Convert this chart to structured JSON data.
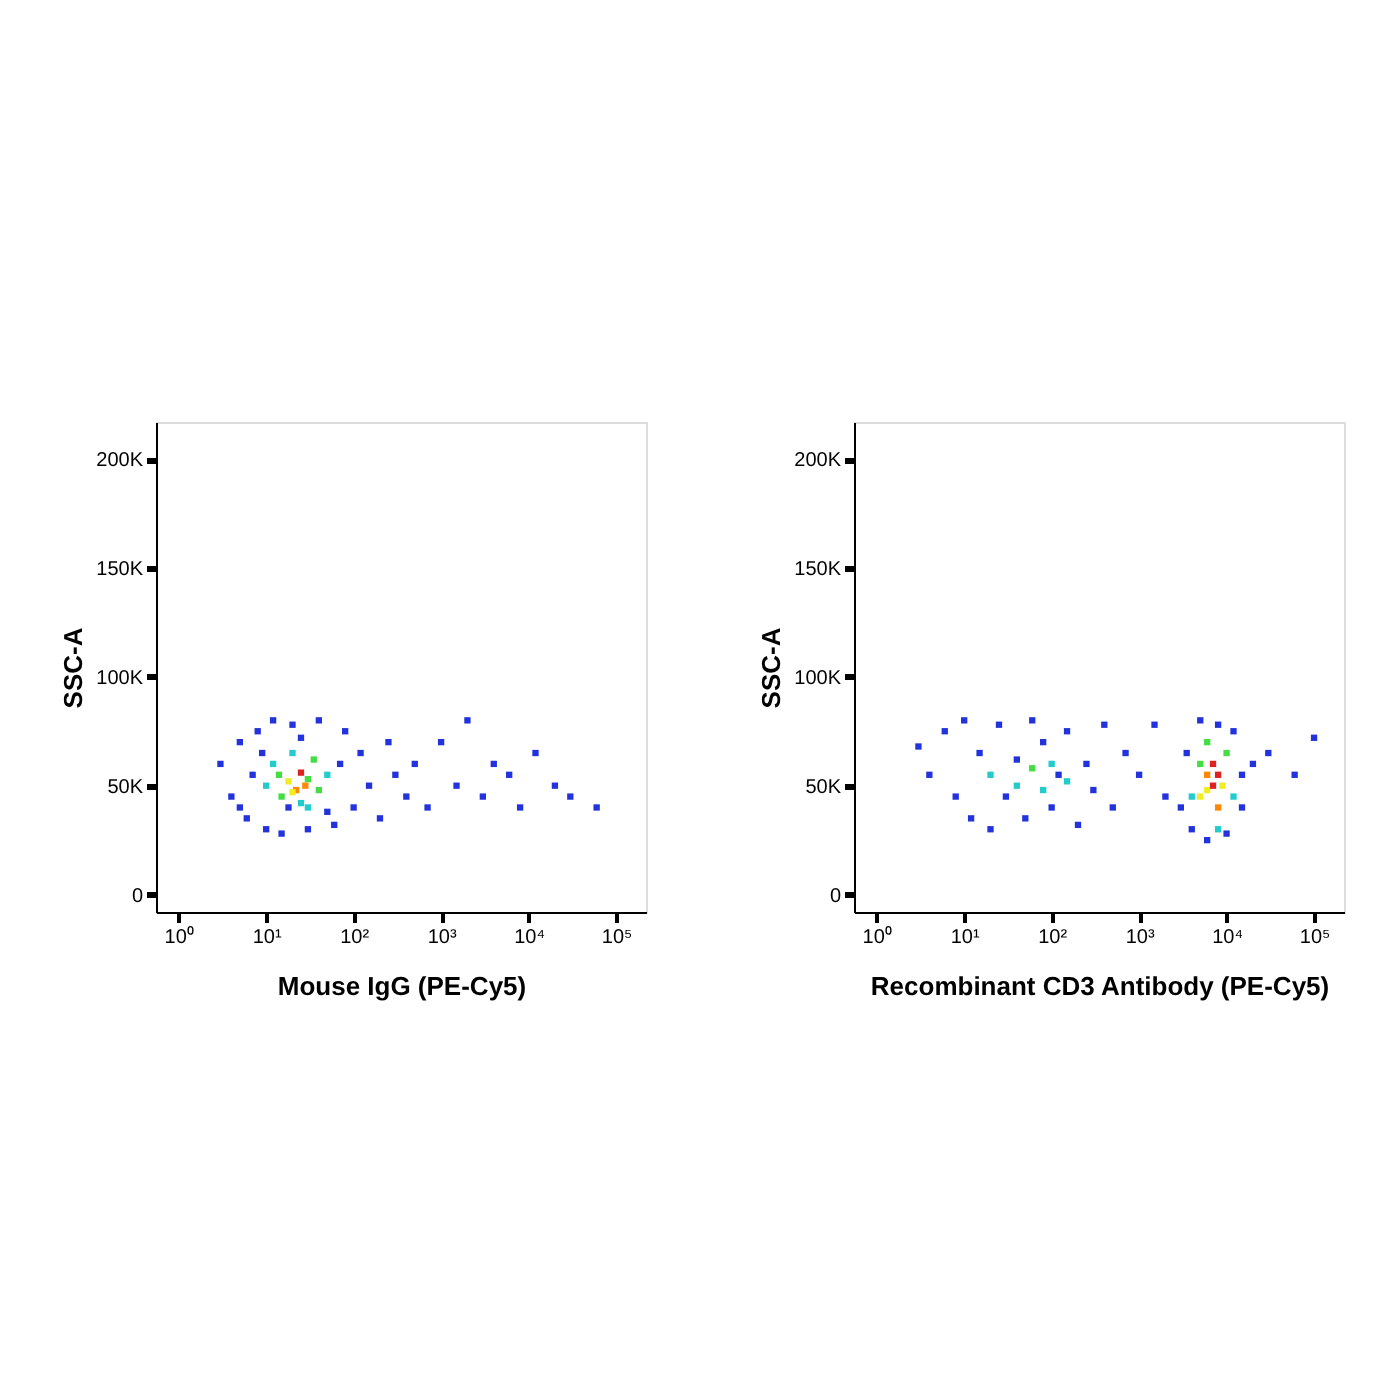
{
  "chart_data": [
    {
      "type": "scatter",
      "xlabel": "Mouse IgG (PE-Cy5)",
      "ylabel": "SSC-A",
      "log": "x",
      "grid": false,
      "marker": "square",
      "xlim": [
        0.55,
        220000
      ],
      "ylim": [
        -8000,
        217000
      ],
      "xticks": [
        {
          "value": 1,
          "label": "10⁰"
        },
        {
          "value": 10,
          "label": "10¹"
        },
        {
          "value": 100,
          "label": "10²"
        },
        {
          "value": 1000,
          "label": "10³"
        },
        {
          "value": 10000,
          "label": "10⁴"
        },
        {
          "value": 100000,
          "label": "10⁵"
        }
      ],
      "yticks": [
        0,
        {
          "value": 50000,
          "label": "50K"
        },
        {
          "value": 100000,
          "label": "100K"
        },
        {
          "value": 150000,
          "label": "150K"
        },
        {
          "value": 200000,
          "label": "200K"
        }
      ],
      "series": [
        {
          "x": [
            3,
            4,
            5,
            6,
            7,
            8,
            10,
            12,
            15,
            20,
            30,
            40,
            60,
            80,
            100,
            120,
            150,
            200,
            250,
            300,
            400,
            500,
            700,
            1000,
            1500,
            2000,
            3000,
            4000,
            6000,
            8000,
            12000,
            20000,
            30000,
            60000,
            5,
            9,
            25,
            50,
            70,
            18,
            10,
            12,
            15,
            20,
            25,
            35,
            40,
            50,
            14,
            30,
            18,
            22,
            25,
            28,
            20,
            30
          ],
          "values": [
            60000,
            45000,
            70000,
            35000,
            55000,
            75000,
            30000,
            80000,
            28000,
            78000,
            30000,
            80000,
            32000,
            75000,
            40000,
            65000,
            50000,
            35000,
            70000,
            55000,
            45000,
            60000,
            40000,
            70000,
            50000,
            80000,
            45000,
            60000,
            55000,
            40000,
            65000,
            50000,
            45000,
            40000,
            40000,
            65000,
            72000,
            38000,
            60000,
            40000,
            50000,
            60000,
            45000,
            65000,
            42000,
            62000,
            48000,
            55000,
            55000,
            40000,
            52000,
            48000,
            56000,
            50000,
            47000,
            53000
          ],
          "colors": [
            "#2233dd",
            "#2233dd",
            "#2233dd",
            "#2233dd",
            "#2233dd",
            "#2233dd",
            "#2233dd",
            "#2233dd",
            "#2233dd",
            "#2233dd",
            "#2233dd",
            "#2233dd",
            "#2233dd",
            "#2233dd",
            "#2233dd",
            "#2233dd",
            "#2233dd",
            "#2233dd",
            "#2233dd",
            "#2233dd",
            "#2233dd",
            "#2233dd",
            "#2233dd",
            "#2233dd",
            "#2233dd",
            "#2233dd",
            "#2233dd",
            "#2233dd",
            "#2233dd",
            "#2233dd",
            "#2233dd",
            "#2233dd",
            "#2233dd",
            "#2233dd",
            "#2233dd",
            "#2233dd",
            "#2233dd",
            "#2233dd",
            "#2233dd",
            "#2233dd",
            "#22cccc",
            "#22cccc",
            "#44dd44",
            "#22cccc",
            "#22cccc",
            "#44dd44",
            "#44dd44",
            "#22cccc",
            "#44dd44",
            "#22cccc",
            "#eeee22",
            "#ff8800",
            "#dd2222",
            "#ff8800",
            "#eeee22",
            "#44dd44"
          ]
        }
      ]
    },
    {
      "type": "scatter",
      "xlabel": "Recombinant CD3 Antibody (PE-Cy5)",
      "ylabel": "SSC-A",
      "log": "x",
      "grid": false,
      "marker": "square",
      "xlim": [
        0.55,
        220000
      ],
      "ylim": [
        -8000,
        217000
      ],
      "xticks": [
        {
          "value": 1,
          "label": "10⁰"
        },
        {
          "value": 10,
          "label": "10¹"
        },
        {
          "value": 100,
          "label": "10²"
        },
        {
          "value": 1000,
          "label": "10³"
        },
        {
          "value": 10000,
          "label": "10⁴"
        },
        {
          "value": 100000,
          "label": "10⁵"
        }
      ],
      "yticks": [
        0,
        {
          "value": 50000,
          "label": "50K"
        },
        {
          "value": 100000,
          "label": "100K"
        },
        {
          "value": 150000,
          "label": "150K"
        },
        {
          "value": 200000,
          "label": "200K"
        }
      ],
      "series": [
        {
          "x": [
            3,
            4,
            6,
            8,
            10,
            12,
            15,
            20,
            25,
            30,
            40,
            50,
            60,
            80,
            100,
            120,
            150,
            200,
            250,
            300,
            400,
            500,
            700,
            1000,
            1500,
            2000,
            20,
            40,
            60,
            80,
            100,
            150,
            3000,
            3500,
            4000,
            5000,
            6000,
            8000,
            10000,
            12000,
            15000,
            20000,
            30000,
            60000,
            100000,
            4000,
            5000,
            6000,
            8000,
            10000,
            12000,
            15000,
            5000,
            6000,
            7000,
            8000,
            9000,
            6000,
            8000,
            7000
          ],
          "values": [
            68000,
            55000,
            75000,
            45000,
            80000,
            35000,
            65000,
            30000,
            78000,
            45000,
            62000,
            35000,
            80000,
            70000,
            40000,
            55000,
            75000,
            32000,
            60000,
            48000,
            78000,
            40000,
            65000,
            55000,
            78000,
            45000,
            55000,
            50000,
            58000,
            48000,
            60000,
            52000,
            40000,
            65000,
            30000,
            80000,
            25000,
            78000,
            28000,
            75000,
            40000,
            60000,
            65000,
            55000,
            72000,
            45000,
            60000,
            70000,
            30000,
            65000,
            45000,
            55000,
            45000,
            55000,
            60000,
            40000,
            50000,
            48000,
            55000,
            50000
          ],
          "colors": [
            "#2233dd",
            "#2233dd",
            "#2233dd",
            "#2233dd",
            "#2233dd",
            "#2233dd",
            "#2233dd",
            "#2233dd",
            "#2233dd",
            "#2233dd",
            "#2233dd",
            "#2233dd",
            "#2233dd",
            "#2233dd",
            "#2233dd",
            "#2233dd",
            "#2233dd",
            "#2233dd",
            "#2233dd",
            "#2233dd",
            "#2233dd",
            "#2233dd",
            "#2233dd",
            "#2233dd",
            "#2233dd",
            "#2233dd",
            "#22cccc",
            "#22cccc",
            "#44dd44",
            "#22cccc",
            "#22cccc",
            "#22cccc",
            "#2233dd",
            "#2233dd",
            "#2233dd",
            "#2233dd",
            "#2233dd",
            "#2233dd",
            "#2233dd",
            "#2233dd",
            "#2233dd",
            "#2233dd",
            "#2233dd",
            "#2233dd",
            "#2233dd",
            "#22cccc",
            "#44dd44",
            "#44dd44",
            "#22cccc",
            "#44dd44",
            "#22cccc",
            "#2233dd",
            "#eeee22",
            "#ff8800",
            "#dd2222",
            "#ff8800",
            "#eeee22",
            "#eeee22",
            "#dd2222",
            "#dd2222"
          ]
        }
      ]
    }
  ]
}
